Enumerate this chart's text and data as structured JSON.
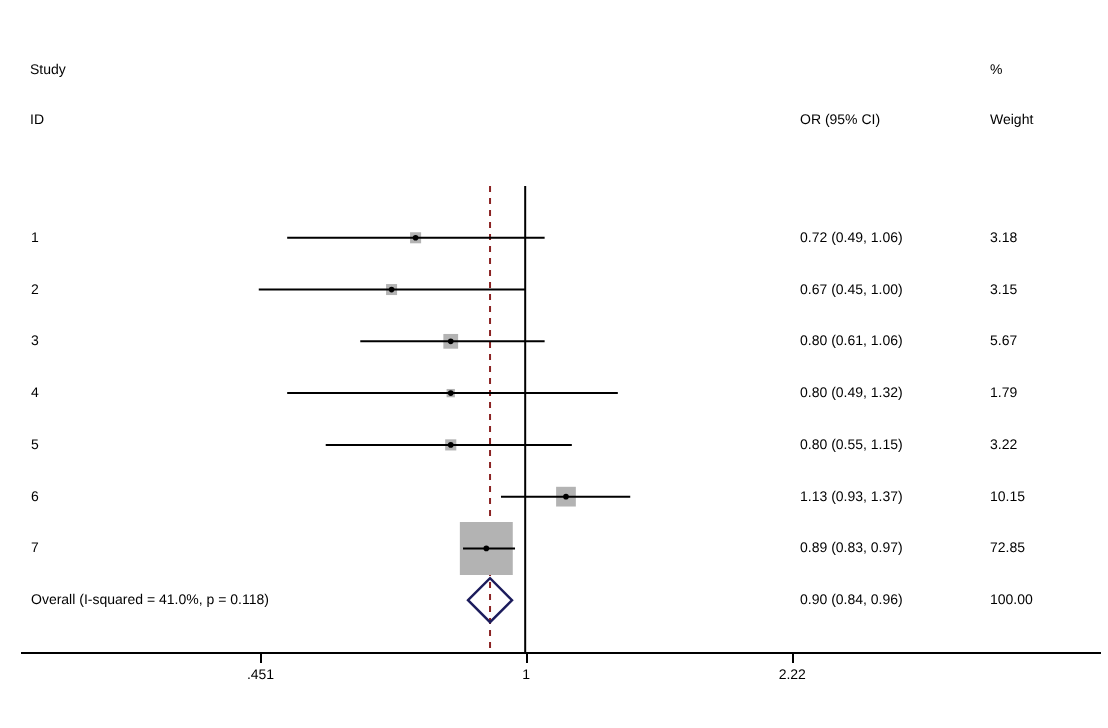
{
  "chart_data": {
    "type": "scatter",
    "orientation": "horizontal",
    "log": "x",
    "categories": [
      "1",
      "2",
      "3",
      "4",
      "5",
      "6",
      "7",
      "Overall  (I-squared = 41.0%, p = 0.118)"
    ],
    "xlim": [
      0.22,
      5.6
    ],
    "xticks": [
      {
        "value": 0.451,
        "label": ".451"
      },
      1,
      2.22
    ],
    "annotations": [
      "Study",
      "ID",
      "OR (95% CI)",
      "%",
      "Weight",
      "0.72 (0.49, 1.06)",
      "0.67 (0.45, 1.00)",
      "0.80 (0.61, 1.06)",
      "0.80 (0.49, 1.32)",
      "0.80 (0.55, 1.15)",
      "1.13 (0.93, 1.37)",
      "0.89 (0.83, 0.97)",
      "0.90 (0.84, 0.96)",
      "3.18",
      "3.15",
      "5.67",
      "1.79",
      "3.22",
      "10.15",
      "72.85",
      "100.00"
    ],
    "series": [
      {
        "color": "#b3b3b3",
        "marker": "square",
        "values": [
          0.72,
          0.67,
          0.8,
          0.8,
          0.8,
          1.13,
          0.89,
          null
        ],
        "errors": [
          [
            0.49,
            1.06
          ],
          [
            0.45,
            1.0
          ],
          [
            0.61,
            1.06
          ],
          [
            0.49,
            1.32
          ],
          [
            0.55,
            1.15
          ],
          [
            0.93,
            1.37
          ],
          [
            0.83,
            0.97
          ],
          null
        ],
        "sizes": [
          0.0437,
          0.0432,
          0.0778,
          0.0246,
          0.0442,
          0.139,
          1,
          null
        ]
      },
      {
        "color": "#1c1c5c",
        "marker": "diamond",
        "values": [
          null,
          null,
          null,
          null,
          null,
          null,
          null,
          0.9
        ]
      }
    ],
    "ref_lines": [
      {
        "axis": "x",
        "value": 1,
        "color": "#000000",
        "line_style": "solid"
      },
      {
        "axis": "x",
        "value": 0.9,
        "color": "#8b2323",
        "line_style": "dashed"
      }
    ]
  }
}
